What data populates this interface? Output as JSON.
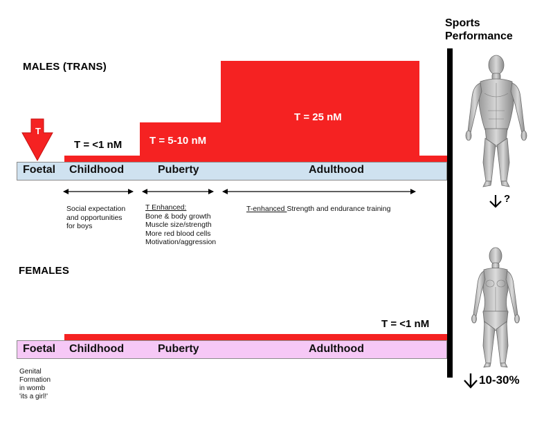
{
  "sports_header": {
    "line1": "Sports",
    "line2": "Performance"
  },
  "males": {
    "title": "MALES (TRANS)",
    "arrow_label": "T",
    "levels": {
      "childhood": "T = <1 nM",
      "puberty": "T = 5-10 nM",
      "adulthood": "T = 25 nM"
    },
    "stages": [
      "Foetal",
      "Childhood",
      "Puberty",
      "Adulthood"
    ],
    "notes": {
      "childhood": [
        "Social expectation",
        "and opportunities",
        "for boys"
      ],
      "puberty_heading": "T Enhanced:",
      "puberty": [
        "Bone & body growth",
        "Muscle size/strength",
        "More red blood cells",
        "Motivation/aggression"
      ],
      "adulthood_underlined": "T-enhanced ",
      "adulthood_rest": "Strength and endurance training"
    },
    "performance_change": "?"
  },
  "females": {
    "title": "FEMALES",
    "level": "T = <1 nM",
    "stages": [
      "Foetal",
      "Childhood",
      "Puberty",
      "Adulthood"
    ],
    "foetal_note": [
      "Genital",
      "Formation",
      "in womb",
      "'its a girl!'"
    ],
    "performance_change": "10-30%"
  },
  "colors": {
    "testosterone_red": "#f52222",
    "male_bar": "#cfe2f0",
    "female_bar": "#f6c8f6",
    "divider": "#000000"
  }
}
